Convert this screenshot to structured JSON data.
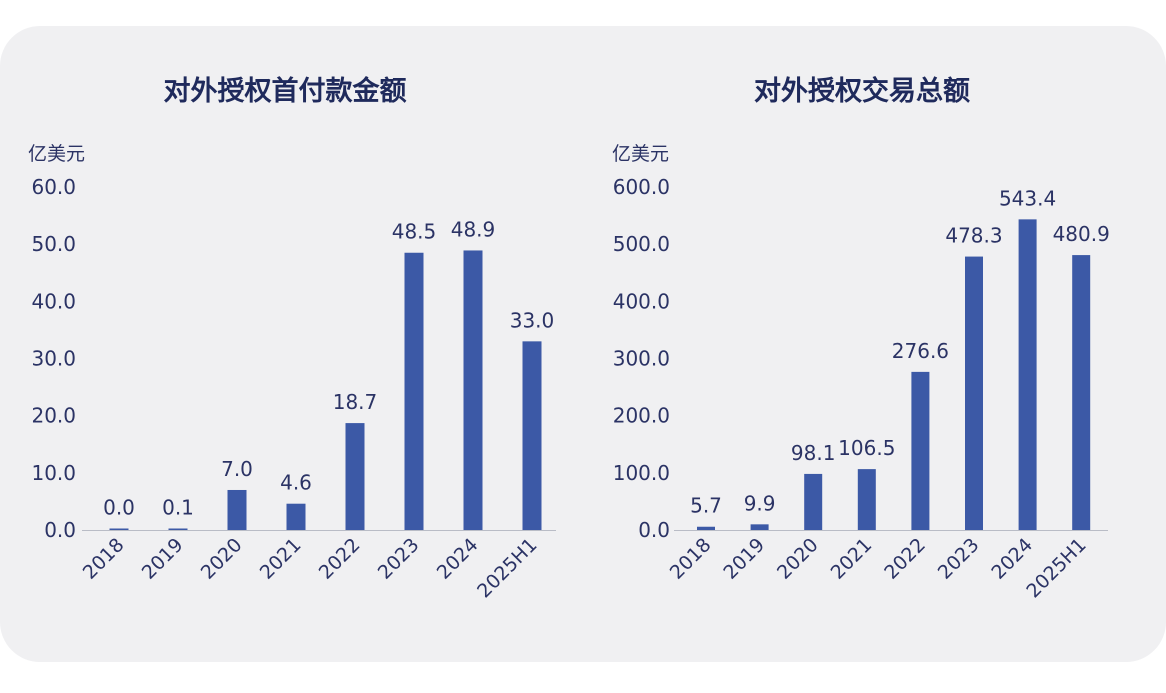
{
  "chart_data": [
    {
      "type": "bar",
      "title": "对外授权首付款金额",
      "unit": "亿美元",
      "categories": [
        "2018",
        "2019",
        "2020",
        "2021",
        "2022",
        "2023",
        "2024",
        "2025H1"
      ],
      "values": [
        0.0,
        0.1,
        7.0,
        4.6,
        18.7,
        48.5,
        48.9,
        33.0
      ],
      "data_labels": [
        "0.0",
        "0.1",
        "7.0",
        "4.6",
        "18.7",
        "48.5",
        "48.9",
        "33.0"
      ],
      "ylim": [
        0,
        60
      ],
      "yticks": [
        "0.0",
        "10.0",
        "20.0",
        "30.0",
        "40.0",
        "50.0",
        "60.0"
      ],
      "grid": false,
      "bar_color": "#3c59a6"
    },
    {
      "type": "bar",
      "title": "对外授权交易总额",
      "unit": "亿美元",
      "categories": [
        "2018",
        "2019",
        "2020",
        "2021",
        "2022",
        "2023",
        "2024",
        "2025H1"
      ],
      "values": [
        5.7,
        9.9,
        98.1,
        106.5,
        276.6,
        478.3,
        543.4,
        480.9
      ],
      "data_labels": [
        "5.7",
        "9.9",
        "98.1",
        "106.5",
        "276.6",
        "478.3",
        "543.4",
        "480.9"
      ],
      "ylim": [
        0,
        600
      ],
      "yticks": [
        "0.0",
        "100.0",
        "200.0",
        "300.0",
        "400.0",
        "500.0",
        "600.0"
      ],
      "grid": false,
      "bar_color": "#3c59a6"
    }
  ]
}
